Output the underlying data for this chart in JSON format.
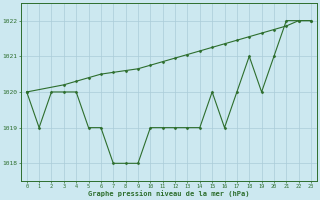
{
  "line1_x": [
    0,
    1,
    2,
    3,
    4,
    5,
    6,
    7,
    8,
    9,
    10,
    11,
    12,
    13,
    14,
    15,
    16,
    17,
    18,
    19,
    20,
    21,
    22,
    23
  ],
  "line1_y": [
    1020,
    1019,
    1020,
    1020,
    1020,
    1019,
    1019,
    1018,
    1018,
    1018,
    1019,
    1019,
    1019,
    1019,
    1019,
    1020,
    1019,
    1020,
    1021,
    1020,
    1021,
    1022,
    1022,
    1022
  ],
  "line2_x": [
    0,
    3,
    4,
    5,
    6,
    7,
    8,
    9,
    10,
    11,
    12,
    13,
    14,
    15,
    16,
    17,
    18,
    19,
    20,
    21,
    22,
    23
  ],
  "line2_y": [
    1020,
    1020.2,
    1020.3,
    1020.4,
    1020.5,
    1020.55,
    1020.6,
    1020.65,
    1020.75,
    1020.85,
    1020.95,
    1021.05,
    1021.15,
    1021.25,
    1021.35,
    1021.45,
    1021.55,
    1021.65,
    1021.75,
    1021.85,
    1022.0,
    1022.0
  ],
  "line_color": "#2d6e2d",
  "bg_color": "#cce8f0",
  "grid_color": "#aaccd8",
  "xlabel": "Graphe pression niveau de la mer (hPa)",
  "ylim": [
    1017.5,
    1022.5
  ],
  "xlim": [
    -0.5,
    23.5
  ],
  "yticks": [
    1018,
    1019,
    1020,
    1021,
    1022
  ],
  "xticks": [
    0,
    1,
    2,
    3,
    4,
    5,
    6,
    7,
    8,
    9,
    10,
    11,
    12,
    13,
    14,
    15,
    16,
    17,
    18,
    19,
    20,
    21,
    22,
    23
  ],
  "marker": "D",
  "markersize": 1.5,
  "linewidth": 0.8
}
